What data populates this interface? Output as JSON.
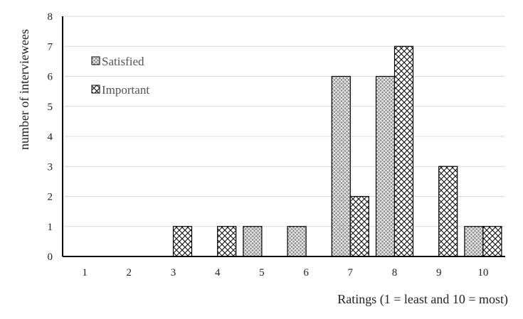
{
  "chart_data": {
    "type": "bar",
    "title": "",
    "xlabel": "Ratings (1 = least and 10 = most)",
    "ylabel": "number of interviewees",
    "categories": [
      "1",
      "2",
      "3",
      "4",
      "5",
      "6",
      "7",
      "8",
      "9",
      "10"
    ],
    "series": [
      {
        "name": "Satisfied",
        "values": [
          0,
          0,
          0,
          0,
          1,
          1,
          6,
          6,
          0,
          1
        ],
        "pattern": "dense-crosshatch",
        "color": "#9a9a9a"
      },
      {
        "name": "Important",
        "values": [
          0,
          0,
          1,
          1,
          0,
          0,
          2,
          7,
          3,
          1
        ],
        "pattern": "open-crosshatch",
        "color": "#ffffff"
      }
    ],
    "ylim": [
      0,
      8
    ],
    "yticks": [
      0,
      1,
      2,
      3,
      4,
      5,
      6,
      7,
      8
    ],
    "grid": true,
    "legend_position": "top-left"
  }
}
